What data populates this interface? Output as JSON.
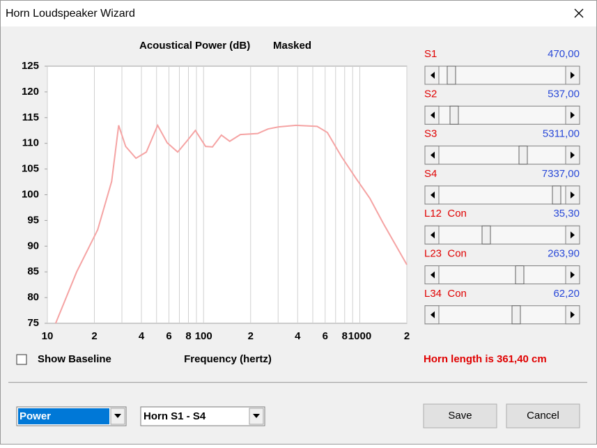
{
  "window": {
    "title": "Horn Loudspeaker Wizard"
  },
  "chart_data": {
    "type": "line",
    "title": "Acoustical Power (dB)",
    "subtitle": "Masked",
    "x_label": "Frequency (hertz)",
    "x": [
      11.3,
      15.4,
      21,
      25.8,
      28.6,
      31.7,
      36.9,
      43,
      50.8,
      58.5,
      68.3,
      78,
      88.6,
      103,
      114,
      130,
      147,
      172,
      222,
      259,
      302,
      390,
      533,
      620,
      764,
      940,
      1160,
      1410,
      2000
    ],
    "series": [
      {
        "color": "#f5a3a3",
        "values": [
          75,
          85,
          93.2,
          102.6,
          113.5,
          109.4,
          107.1,
          108.3,
          113.5,
          110.1,
          108.3,
          110.4,
          112.5,
          109.4,
          109.3,
          111.6,
          110.4,
          111.7,
          111.9,
          112.8,
          113.2,
          113.5,
          113.3,
          112.1,
          107.4,
          103.3,
          99.3,
          94.5,
          86.4
        ]
      }
    ],
    "log_x": true,
    "xlim": [
      10,
      2000
    ],
    "ylim": [
      75,
      125
    ],
    "xticks": [
      10,
      {
        "value": 20,
        "label": "2"
      },
      {
        "value": 40,
        "label": "4"
      },
      {
        "value": 60,
        "label": "6"
      },
      {
        "value": 80,
        "label": "8"
      },
      100,
      {
        "value": 200,
        "label": "2"
      },
      {
        "value": 400,
        "label": "4"
      },
      {
        "value": 600,
        "label": "6"
      },
      {
        "value": 800,
        "label": "8"
      },
      1000,
      {
        "value": 2000,
        "label": "2"
      }
    ],
    "x_minor_gridlines": [
      30,
      50,
      70,
      90,
      300,
      500,
      700,
      900
    ],
    "yticks": [
      75,
      80,
      85,
      90,
      95,
      100,
      105,
      110,
      115,
      120,
      125
    ],
    "grid_x": true
  },
  "sliders": [
    {
      "label": "S1",
      "value": "470,00"
    },
    {
      "label": "S2",
      "value": "537,00"
    },
    {
      "label": "S3",
      "value": "5311,00"
    },
    {
      "label": "S4",
      "value": "7337,00"
    },
    {
      "label": "L12  Con",
      "value": "35,30"
    },
    {
      "label": "L23  Con",
      "value": "263,90"
    },
    {
      "label": "L34  Con",
      "value": "62,20"
    }
  ],
  "show_baseline": {
    "label": "Show Baseline",
    "checked": false
  },
  "horn_length": "Horn length is 361,40 cm",
  "dropdowns": [
    "Power",
    "Horn S1 - S4"
  ],
  "buttons": [
    "Save",
    "Cancel"
  ]
}
